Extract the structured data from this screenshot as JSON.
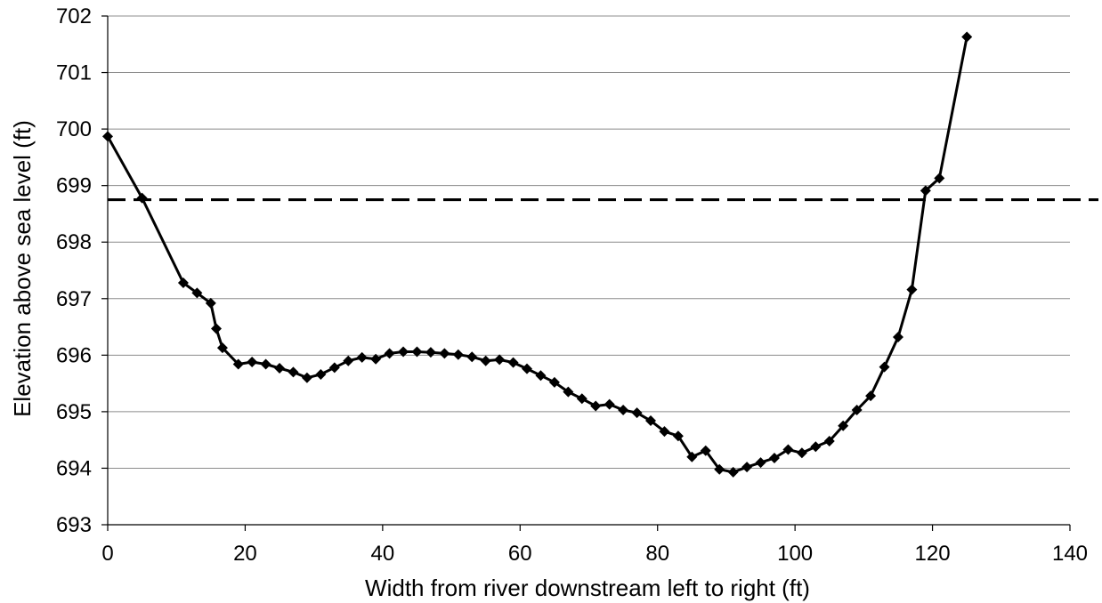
{
  "chart_data": {
    "type": "line",
    "title": "",
    "xlabel": "Width from river downstream left to right (ft)",
    "ylabel": "Elevation above sea level (ft)",
    "xlim": [
      0,
      140
    ],
    "ylim": [
      693,
      702
    ],
    "xticks": [
      0,
      20,
      40,
      60,
      80,
      100,
      120,
      140
    ],
    "yticks": [
      693,
      694,
      695,
      696,
      697,
      698,
      699,
      700,
      701,
      702
    ],
    "grid": "horizontal",
    "legend": "none",
    "colors": {
      "series": "#000000",
      "grid": "#8c8c8c",
      "reference": "#000000"
    },
    "series": [
      {
        "marker": "diamond",
        "x": [
          0,
          5,
          11,
          13,
          15,
          15.8,
          16.7,
          19,
          21,
          23,
          25,
          27,
          29,
          31,
          33,
          35,
          37,
          39,
          41,
          43,
          45,
          47,
          49,
          51,
          53,
          55,
          57,
          59,
          61,
          63,
          65,
          67,
          69,
          71,
          73,
          75,
          77,
          79,
          81,
          83,
          85,
          87,
          89,
          91,
          93,
          95,
          97,
          99,
          101,
          103,
          105,
          107,
          109,
          111,
          113,
          115,
          117,
          119,
          121,
          125
        ],
        "y": [
          699.87,
          698.78,
          697.28,
          697.1,
          696.92,
          696.47,
          696.13,
          695.84,
          695.88,
          695.84,
          695.77,
          695.7,
          695.6,
          695.66,
          695.78,
          695.9,
          695.96,
          695.93,
          696.03,
          696.06,
          696.06,
          696.05,
          696.03,
          696.01,
          695.97,
          695.9,
          695.92,
          695.87,
          695.76,
          695.64,
          695.52,
          695.35,
          695.23,
          695.1,
          695.13,
          695.03,
          694.98,
          694.84,
          694.65,
          694.57,
          694.2,
          694.31,
          693.98,
          693.93,
          694.02,
          694.1,
          694.18,
          694.33,
          694.27,
          694.38,
          694.48,
          694.75,
          695.03,
          695.28,
          695.79,
          696.32,
          697.16,
          698.91,
          699.13,
          701.63
        ]
      }
    ],
    "reference_lines": [
      {
        "orientation": "horizontal",
        "y": 698.75,
        "style": "dashed"
      }
    ]
  }
}
